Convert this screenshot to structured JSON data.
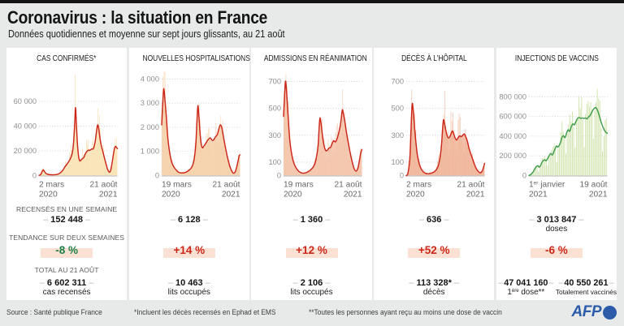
{
  "header": {
    "title": "Coronavirus : la situation en France",
    "subtitle": "Données quotidiennes et moyenne sur sept jours glissants, au 21 août"
  },
  "stats_labels": {
    "row1": "RECENSÉS EN UNE SEMAINE",
    "row2": "TENDANCE SUR DEUX SEMAINES",
    "row3": "TOTAL AU 21 AOÛT"
  },
  "colors": {
    "accent_red": "#cc2619",
    "accent_green": "#1b7e44",
    "pill_bg": "#fbe0d4",
    "afp_blue": "#2c5ba9",
    "page_bg": "#e8eaea"
  },
  "panels": [
    {
      "title": "CAS CONFIRMÉS*",
      "week_value": "152 448",
      "week_sub": "",
      "trend": "-8 %",
      "trend_color": "#1b7e44",
      "total": "6 602 311",
      "total_sub": "cas recensés"
    },
    {
      "title": "NOUVELLES HOSPITALISATIONS",
      "week_value": "6 128",
      "week_sub": "",
      "trend": "+14 %",
      "trend_color": "#cc2619",
      "total": "10 463",
      "total_sub": "lits occupés"
    },
    {
      "title": "ADMISSIONS EN RÉANIMATION",
      "week_value": "1 360",
      "week_sub": "",
      "trend": "+12 %",
      "trend_color": "#cc2619",
      "total": "2 106",
      "total_sub": "lits occupés"
    },
    {
      "title": "DÉCÈS À L’HÔPITAL",
      "week_value": "636",
      "week_sub": "",
      "trend": "+52 %",
      "trend_color": "#cc2619",
      "total": "113 328*",
      "total_sub": "décès"
    },
    {
      "title": "INJECTIONS DE VACCINS",
      "week_value": "3 013 847",
      "week_sub": "doses",
      "trend": "-6 %",
      "trend_color": "#cc2619",
      "totals": [
        {
          "value": "47 041 160",
          "sub": "1ère dose**",
          "sup": true
        },
        {
          "value": "40 550 261",
          "sub": "Totalement vaccinés",
          "small": true
        }
      ]
    }
  ],
  "footer": {
    "source": "Source : Santé publique France",
    "note1": "*Incluent les décès recensés en Ephad et EMS",
    "note2": "**Toutes les personnes ayant reçu au moins une dose de vaccin",
    "logo_text": "AFP"
  },
  "chart_data": [
    {
      "type": "area+line",
      "title": "Cas confirmés",
      "x_start_label": [
        "2 mars",
        "2020"
      ],
      "x_end_label": [
        "21 août",
        "2021"
      ],
      "yticks": [
        {
          "v": 20000,
          "label": "20 000"
        },
        {
          "v": 40000,
          "label": "40 000"
        },
        {
          "v": 60000,
          "label": "60 000"
        }
      ],
      "zero_label": "0",
      "ylim": [
        0,
        85000
      ],
      "x": [
        0,
        0.02,
        0.04,
        0.055,
        0.07,
        0.09,
        0.12,
        0.16,
        0.2,
        0.24,
        0.27,
        0.3,
        0.33,
        0.36,
        0.39,
        0.42,
        0.44,
        0.455,
        0.466,
        0.478,
        0.49,
        0.505,
        0.52,
        0.535,
        0.55,
        0.57,
        0.59,
        0.61,
        0.63,
        0.65,
        0.67,
        0.69,
        0.705,
        0.72,
        0.735,
        0.748,
        0.76,
        0.775,
        0.79,
        0.81,
        0.83,
        0.85,
        0.87,
        0.885,
        0.9,
        0.915,
        0.93,
        0.945,
        0.955,
        0.965,
        0.975,
        0.985,
        1
      ],
      "avg": [
        250,
        700,
        3200,
        4600,
        3300,
        1600,
        900,
        650,
        700,
        1100,
        2200,
        4000,
        7000,
        9500,
        12500,
        17000,
        26000,
        42000,
        55000,
        40000,
        26000,
        15500,
        12000,
        12500,
        13500,
        14500,
        17500,
        19500,
        20500,
        20500,
        21500,
        21500,
        24000,
        29000,
        36500,
        41000,
        38500,
        31500,
        25500,
        20500,
        15500,
        10500,
        6000,
        3600,
        2700,
        4500,
        9500,
        15500,
        19500,
        22500,
        23600,
        23000,
        21800
      ],
      "daily_bars": {
        "pattern": [
          0.5,
          0.85,
          1.28,
          1.35,
          1.28,
          1.15,
          0.9
        ],
        "rand_amp": 0.3,
        "n": 96,
        "cap": 82000
      },
      "colors": {
        "line": "#cc2619",
        "area": "#f9e3b6",
        "area_opacity": 0.85,
        "bar": "#f7ddae"
      }
    },
    {
      "type": "area+line",
      "title": "Nouvelles hospitalisations",
      "x_start_label": [
        "19 mars",
        "2020"
      ],
      "x_end_label": [
        "21 août",
        "2021"
      ],
      "yticks": [
        {
          "v": 1000,
          "label": "1 000"
        },
        {
          "v": 2000,
          "label": "2 000"
        },
        {
          "v": 3000,
          "label": "3 000"
        },
        {
          "v": 4000,
          "label": "4 000"
        }
      ],
      "zero_label": "0",
      "ylim": [
        0,
        4350
      ],
      "x": [
        0,
        0.015,
        0.028,
        0.045,
        0.06,
        0.08,
        0.11,
        0.14,
        0.18,
        0.22,
        0.26,
        0.3,
        0.34,
        0.38,
        0.41,
        0.435,
        0.452,
        0.462,
        0.475,
        0.49,
        0.505,
        0.52,
        0.54,
        0.565,
        0.59,
        0.62,
        0.645,
        0.66,
        0.685,
        0.71,
        0.735,
        0.75,
        0.765,
        0.78,
        0.8,
        0.82,
        0.845,
        0.875,
        0.91,
        0.935,
        0.955,
        0.975,
        0.99,
        1
      ],
      "avg": [
        2100,
        3100,
        3600,
        3000,
        2400,
        1500,
        800,
        450,
        250,
        130,
        110,
        130,
        200,
        330,
        600,
        1300,
        2400,
        2900,
        2450,
        1750,
        1300,
        1150,
        1230,
        1350,
        1480,
        1560,
        1460,
        1470,
        1600,
        1700,
        2000,
        2100,
        2010,
        1750,
        1390,
        1050,
        680,
        330,
        110,
        140,
        330,
        620,
        830,
        860
      ],
      "daily_bars": {
        "pattern": [
          0.7,
          1.15,
          1.28,
          1.2,
          1.12,
          1.02,
          0.78
        ],
        "rand_amp": 0.25,
        "n": 76,
        "cap": 4320
      },
      "colors": {
        "line": "#cc2619",
        "area": "#f6cfa8",
        "area_opacity": 0.85,
        "bar": "#f9dcbc"
      }
    },
    {
      "type": "area+line",
      "title": "Admissions en réanimation",
      "x_start_label": [
        "19 mars",
        "2020"
      ],
      "x_end_label": [
        "21 août",
        "2021"
      ],
      "yticks": [
        {
          "v": 100,
          "label": "100"
        },
        {
          "v": 300,
          "label": "300"
        },
        {
          "v": 500,
          "label": "500"
        },
        {
          "v": 700,
          "label": "700"
        }
      ],
      "zero_label": "0",
      "ylim": [
        0,
        782
      ],
      "x": [
        0,
        0.015,
        0.028,
        0.05,
        0.08,
        0.11,
        0.14,
        0.18,
        0.22,
        0.26,
        0.3,
        0.34,
        0.38,
        0.41,
        0.44,
        0.455,
        0.465,
        0.48,
        0.5,
        0.52,
        0.54,
        0.56,
        0.58,
        0.6,
        0.62,
        0.64,
        0.66,
        0.68,
        0.7,
        0.72,
        0.735,
        0.75,
        0.765,
        0.78,
        0.8,
        0.83,
        0.86,
        0.89,
        0.91,
        0.93,
        0.95,
        0.965,
        0.98,
        0.99,
        1
      ],
      "avg": [
        440,
        620,
        700,
        520,
        260,
        140,
        80,
        40,
        22,
        18,
        25,
        40,
        65,
        110,
        220,
        370,
        430,
        380,
        280,
        215,
        185,
        190,
        205,
        210,
        240,
        260,
        250,
        270,
        310,
        360,
        420,
        490,
        455,
        410,
        330,
        230,
        140,
        70,
        40,
        35,
        60,
        105,
        155,
        180,
        194
      ],
      "daily_bars": {
        "pattern": [
          0.65,
          1.12,
          1.28,
          1.2,
          1.1,
          1.0,
          0.75
        ],
        "rand_amp": 0.22,
        "n": 76,
        "cap": 760
      },
      "colors": {
        "line": "#cc2619",
        "area": "#f3c3a8",
        "area_opacity": 0.85,
        "bar": "#f7d2bc"
      }
    },
    {
      "type": "area+line",
      "title": "Décès à l'hôpital",
      "x_start_label": [
        "2 mars",
        "2020"
      ],
      "x_end_label": [
        "21 août",
        "2021"
      ],
      "yticks": [
        {
          "v": 100,
          "label": "100"
        },
        {
          "v": 300,
          "label": "300"
        },
        {
          "v": 500,
          "label": "500"
        },
        {
          "v": 700,
          "label": "700"
        }
      ],
      "zero_label": "0",
      "ylim": [
        0,
        782
      ],
      "x": [
        0,
        0.02,
        0.045,
        0.06,
        0.075,
        0.09,
        0.11,
        0.14,
        0.17,
        0.2,
        0.24,
        0.28,
        0.32,
        0.36,
        0.4,
        0.43,
        0.45,
        0.465,
        0.475,
        0.485,
        0.5,
        0.52,
        0.54,
        0.56,
        0.585,
        0.6,
        0.62,
        0.64,
        0.66,
        0.68,
        0.7,
        0.72,
        0.74,
        0.755,
        0.78,
        0.8,
        0.83,
        0.86,
        0.89,
        0.92,
        0.945,
        0.97,
        0.985,
        1
      ],
      "avg": [
        0,
        15,
        120,
        330,
        530,
        480,
        330,
        160,
        80,
        40,
        18,
        14,
        18,
        30,
        60,
        130,
        230,
        360,
        415,
        400,
        350,
        300,
        280,
        295,
        330,
        320,
        285,
        265,
        280,
        295,
        290,
        300,
        310,
        295,
        255,
        205,
        150,
        100,
        55,
        30,
        21,
        35,
        60,
        91
      ],
      "daily_bars": {
        "pattern": [
          0.6,
          1.2,
          1.38,
          1.28,
          1.15,
          1.05,
          0.68
        ],
        "rand_amp": 0.28,
        "n": 76,
        "cap": 640
      },
      "colors": {
        "line": "#cc2619",
        "area": "#efb295",
        "area_opacity": 0.82,
        "bar": "#f4c5ae"
      }
    },
    {
      "type": "bar+line",
      "title": "Injections de vaccins",
      "x_start_label": [
        "1er janvier",
        "2021"
      ],
      "x_start_sup": true,
      "x_end_label": [
        "19 août",
        "2021"
      ],
      "yticks": [
        {
          "v": 200000,
          "label": "200 000"
        },
        {
          "v": 400000,
          "label": "400 000"
        },
        {
          "v": 600000,
          "label": "600 000"
        },
        {
          "v": 800000,
          "label": "800 000"
        }
      ],
      "zero_label": "0",
      "ylim": [
        0,
        1066000
      ],
      "x": [
        0,
        0.03,
        0.06,
        0.08,
        0.1,
        0.115,
        0.13,
        0.15,
        0.17,
        0.2,
        0.22,
        0.24,
        0.26,
        0.28,
        0.3,
        0.33,
        0.35,
        0.37,
        0.4,
        0.42,
        0.44,
        0.46,
        0.48,
        0.5,
        0.52,
        0.54,
        0.56,
        0.58,
        0.6,
        0.62,
        0.64,
        0.66,
        0.68,
        0.7,
        0.72,
        0.74,
        0.76,
        0.78,
        0.8,
        0.82,
        0.845,
        0.86,
        0.88,
        0.9,
        0.92,
        0.94,
        0.96,
        0.98,
        1
      ],
      "avg": [
        0,
        15000,
        45000,
        75000,
        95000,
        100000,
        85000,
        105000,
        140000,
        160000,
        150000,
        175000,
        205000,
        225000,
        210000,
        265000,
        300000,
        290000,
        330000,
        385000,
        405000,
        385000,
        430000,
        465000,
        450000,
        495000,
        525000,
        515000,
        550000,
        580000,
        590000,
        580000,
        585000,
        580000,
        585000,
        575000,
        595000,
        610000,
        640000,
        670000,
        690000,
        685000,
        650000,
        600000,
        545000,
        500000,
        465000,
        440000,
        430000
      ],
      "daily_bars": {
        "pattern": [
          0.5,
          0.95,
          1.12,
          1.22,
          1.27,
          1.2,
          1.0
        ],
        "rand_amp": 0.14,
        "n": 60,
        "cap": 880000
      },
      "colors": {
        "line": "#3f9c49",
        "bar": "#cce1a5"
      }
    }
  ]
}
